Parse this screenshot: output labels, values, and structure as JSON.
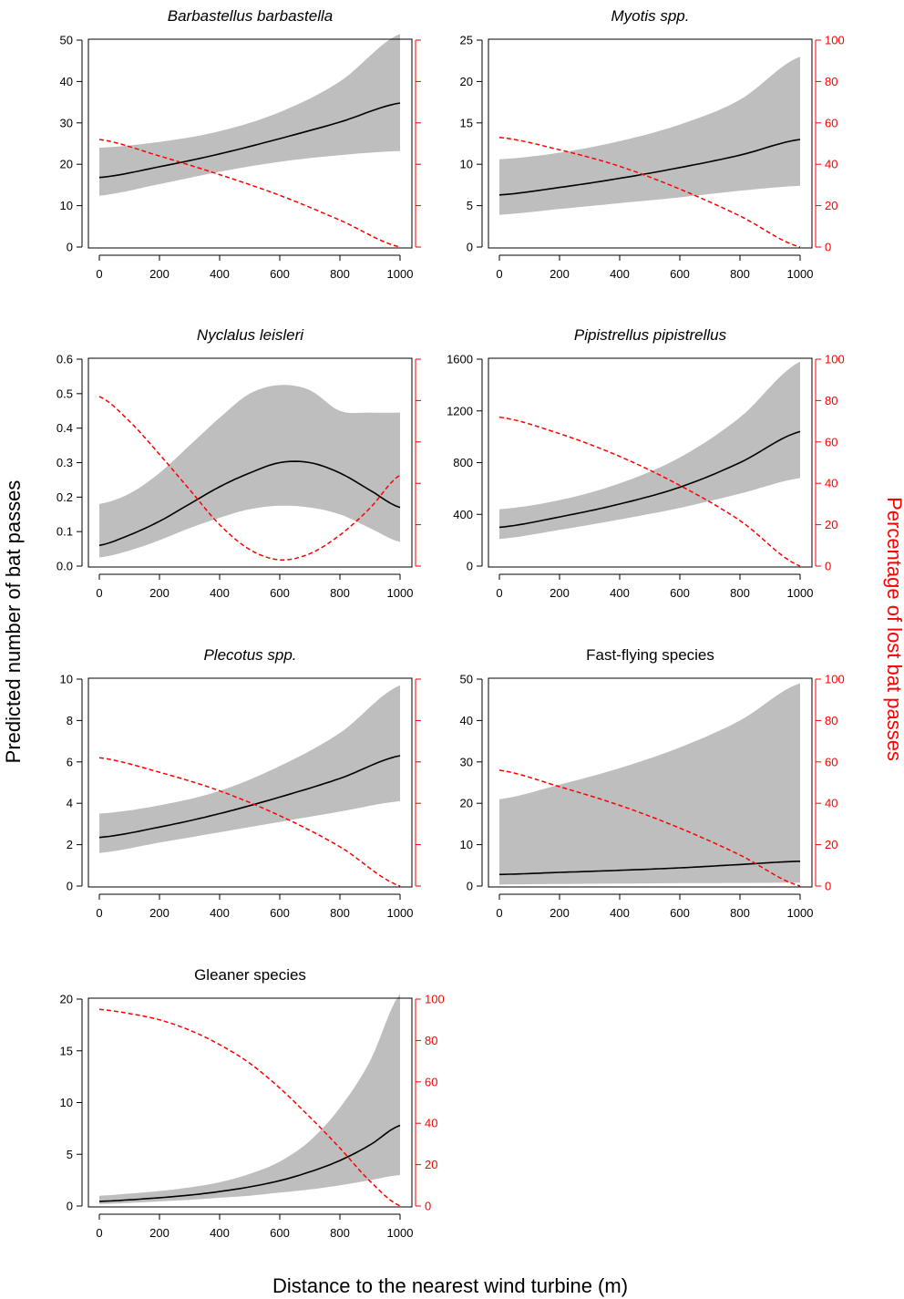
{
  "figure": {
    "xlabel": "Distance to the nearest wind turbine (m)",
    "ylabel_left": "Predicted number of bat passes",
    "ylabel_right": "Percentage of lost bat passes"
  },
  "colors": {
    "fit": "#000000",
    "ci_band": "#bebebe",
    "lost": "#ff0000"
  },
  "chart_data": [
    {
      "type": "line",
      "title": "Barbastellus barbastella",
      "title_italic": true,
      "xlim": [
        0,
        1000
      ],
      "ylim": [
        0,
        50
      ],
      "y2lim": [
        0,
        100
      ],
      "x": [
        0,
        200,
        400,
        600,
        800,
        1000
      ],
      "series": [
        {
          "role": "fit",
          "values": [
            16.8,
            19.4,
            22.5,
            26.2,
            30.2,
            34.8
          ]
        },
        {
          "role": "ci_lower",
          "values": [
            12.4,
            15.2,
            18.2,
            20.6,
            22.2,
            23.2
          ]
        },
        {
          "role": "ci_upper",
          "values": [
            24.0,
            25.4,
            28.0,
            32.6,
            40.0,
            51.5
          ]
        },
        {
          "role": "lost_pct",
          "axis": "right",
          "values": [
            52,
            44,
            35,
            25,
            13,
            0
          ]
        }
      ],
      "xticks": [
        0,
        200,
        400,
        600,
        800,
        1000
      ],
      "yticks": [
        0,
        10,
        20,
        30,
        40,
        50
      ],
      "y2ticks": []
    },
    {
      "type": "line",
      "title": "Myotis spp.",
      "title_italic": true,
      "xlim": [
        0,
        1000
      ],
      "ylim": [
        0,
        25
      ],
      "y2lim": [
        0,
        100
      ],
      "x": [
        0,
        200,
        400,
        600,
        800,
        1000
      ],
      "series": [
        {
          "role": "fit",
          "values": [
            6.3,
            7.2,
            8.3,
            9.6,
            11.1,
            13.0
          ]
        },
        {
          "role": "ci_lower",
          "values": [
            3.9,
            4.6,
            5.3,
            6.0,
            6.8,
            7.4
          ]
        },
        {
          "role": "ci_upper",
          "values": [
            10.6,
            11.4,
            12.8,
            14.8,
            17.8,
            23.0
          ]
        },
        {
          "role": "lost_pct",
          "axis": "right",
          "values": [
            53,
            47,
            39,
            28,
            15,
            0
          ]
        }
      ],
      "xticks": [
        0,
        200,
        400,
        600,
        800,
        1000
      ],
      "yticks": [
        0,
        5,
        10,
        15,
        20,
        25
      ],
      "y2ticks": [
        0,
        20,
        40,
        60,
        80,
        100
      ]
    },
    {
      "type": "line",
      "title": "Nyclalus leisleri",
      "title_italic": true,
      "xlim": [
        0,
        1000
      ],
      "ylim": [
        0,
        0.6
      ],
      "y2lim": [
        0,
        100
      ],
      "x": [
        0,
        100,
        200,
        300,
        400,
        500,
        600,
        700,
        800,
        900,
        1000
      ],
      "series": [
        {
          "role": "fit",
          "values": [
            0.06,
            0.09,
            0.13,
            0.18,
            0.23,
            0.27,
            0.3,
            0.3,
            0.27,
            0.22,
            0.17
          ]
        },
        {
          "role": "ci_lower",
          "values": [
            0.025,
            0.045,
            0.075,
            0.11,
            0.14,
            0.165,
            0.175,
            0.17,
            0.15,
            0.11,
            0.07
          ]
        },
        {
          "role": "ci_upper",
          "values": [
            0.18,
            0.21,
            0.27,
            0.35,
            0.43,
            0.5,
            0.525,
            0.51,
            0.45,
            0.445,
            0.445
          ]
        },
        {
          "role": "lost_pct",
          "axis": "right",
          "values": [
            82,
            70,
            54,
            37,
            20,
            8,
            3,
            6,
            15,
            28,
            44
          ]
        }
      ],
      "xticks": [
        0,
        200,
        400,
        600,
        800,
        1000
      ],
      "yticks": [
        0.0,
        0.1,
        0.2,
        0.3,
        0.4,
        0.5,
        0.6
      ],
      "y2ticks": []
    },
    {
      "type": "line",
      "title": "Pipistrellus pipistrellus",
      "title_italic": true,
      "xlim": [
        0,
        1000
      ],
      "ylim": [
        0,
        1600
      ],
      "y2lim": [
        0,
        100
      ],
      "x": [
        0,
        200,
        400,
        600,
        800,
        1000
      ],
      "series": [
        {
          "role": "fit",
          "values": [
            300,
            380,
            480,
            610,
            800,
            1040
          ]
        },
        {
          "role": "ci_lower",
          "values": [
            210,
            280,
            360,
            450,
            560,
            680
          ]
        },
        {
          "role": "ci_upper",
          "values": [
            440,
            510,
            640,
            840,
            1150,
            1580
          ]
        },
        {
          "role": "lost_pct",
          "axis": "right",
          "values": [
            72,
            64,
            53,
            39,
            22,
            0
          ]
        }
      ],
      "xticks": [
        0,
        200,
        400,
        600,
        800,
        1000
      ],
      "yticks": [
        0,
        400,
        800,
        1200,
        1600
      ],
      "y2ticks": [
        0,
        20,
        40,
        60,
        80,
        100
      ]
    },
    {
      "type": "line",
      "title": "Plecotus spp.",
      "title_italic": true,
      "xlim": [
        0,
        1000
      ],
      "ylim": [
        0,
        10
      ],
      "y2lim": [
        0,
        100
      ],
      "x": [
        0,
        200,
        400,
        600,
        800,
        1000
      ],
      "series": [
        {
          "role": "fit",
          "values": [
            2.35,
            2.85,
            3.5,
            4.3,
            5.2,
            6.3
          ]
        },
        {
          "role": "ci_lower",
          "values": [
            1.6,
            2.1,
            2.6,
            3.1,
            3.6,
            4.1
          ]
        },
        {
          "role": "ci_upper",
          "values": [
            3.5,
            3.9,
            4.6,
            5.8,
            7.4,
            9.7
          ]
        },
        {
          "role": "lost_pct",
          "axis": "right",
          "values": [
            62,
            55,
            46,
            34,
            19,
            0
          ]
        }
      ],
      "xticks": [
        0,
        200,
        400,
        600,
        800,
        1000
      ],
      "yticks": [
        0,
        2,
        4,
        6,
        8,
        10
      ],
      "y2ticks": []
    },
    {
      "type": "line",
      "title": "Fast-flying species",
      "title_italic": false,
      "xlim": [
        0,
        1000
      ],
      "ylim": [
        0,
        50
      ],
      "y2lim": [
        0,
        100
      ],
      "x": [
        0,
        200,
        400,
        600,
        800,
        1000
      ],
      "series": [
        {
          "role": "fit",
          "values": [
            2.8,
            3.3,
            3.8,
            4.4,
            5.2,
            6.0
          ]
        },
        {
          "role": "ci_lower",
          "values": [
            0.4,
            0.5,
            0.6,
            0.7,
            0.75,
            0.8
          ]
        },
        {
          "role": "ci_upper",
          "values": [
            21.0,
            24.5,
            28.5,
            33.5,
            40.0,
            49.0
          ]
        },
        {
          "role": "lost_pct",
          "axis": "right",
          "values": [
            56,
            48,
            39,
            28,
            15,
            0
          ]
        }
      ],
      "xticks": [
        0,
        200,
        400,
        600,
        800,
        1000
      ],
      "yticks": [
        0,
        10,
        20,
        30,
        40,
        50
      ],
      "y2ticks": [
        0,
        20,
        40,
        60,
        80,
        100
      ]
    },
    {
      "type": "line",
      "title": "Gleaner species",
      "title_italic": false,
      "xlim": [
        0,
        1000
      ],
      "ylim": [
        0,
        20
      ],
      "y2lim": [
        0,
        100
      ],
      "x": [
        0,
        100,
        200,
        300,
        400,
        500,
        600,
        700,
        800,
        900,
        1000
      ],
      "series": [
        {
          "role": "fit",
          "values": [
            0.45,
            0.6,
            0.8,
            1.05,
            1.4,
            1.85,
            2.45,
            3.3,
            4.4,
            5.9,
            7.8
          ]
        },
        {
          "role": "ci_lower",
          "values": [
            0.2,
            0.3,
            0.45,
            0.6,
            0.8,
            1.0,
            1.3,
            1.6,
            2.0,
            2.5,
            3.0
          ]
        },
        {
          "role": "ci_upper",
          "values": [
            1.0,
            1.2,
            1.45,
            1.8,
            2.3,
            3.1,
            4.3,
            6.3,
            9.5,
            14.0,
            20.5
          ]
        },
        {
          "role": "lost_pct",
          "axis": "right",
          "values": [
            95,
            93,
            90,
            85,
            78,
            69,
            57,
            43,
            28,
            12,
            0
          ]
        }
      ],
      "xticks": [
        0,
        200,
        400,
        600,
        800,
        1000
      ],
      "yticks": [
        0,
        5,
        10,
        15,
        20
      ],
      "y2ticks": [
        0,
        20,
        40,
        60,
        80,
        100
      ]
    }
  ]
}
